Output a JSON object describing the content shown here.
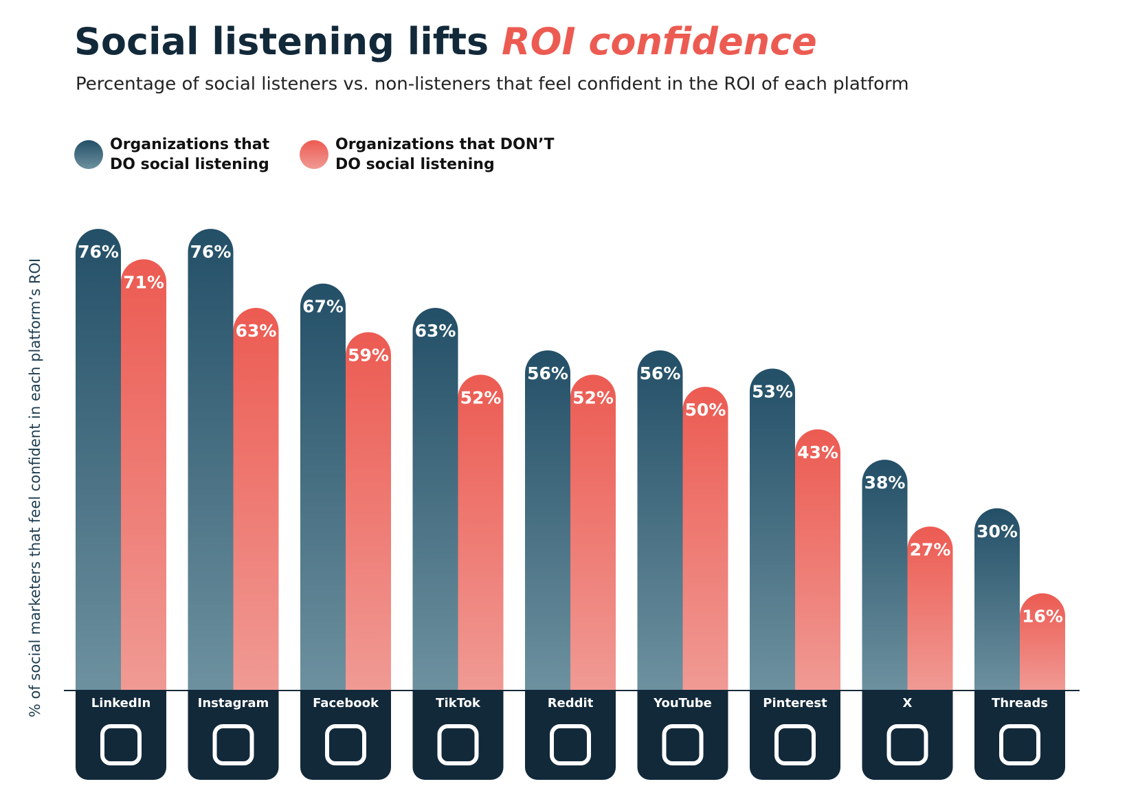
{
  "chart_data": {
    "type": "bar",
    "title": "Social listening lifts",
    "title_highlight": "ROI confidence",
    "subtitle": "Percentage of social listeners vs. non-listeners that feel confident in the ROI of each platform",
    "y_label": "% of social marketers that feel confident in each platform’s ROI",
    "categories": [
      "LinkedIn",
      "Instagram",
      "Facebook",
      "TikTok",
      "Reddit",
      "YouTube",
      "Pinterest",
      "X",
      "Threads"
    ],
    "series": [
      {
        "name": "Organizations that DO social listening",
        "color": "#234f67",
        "values": [
          76,
          76,
          67,
          63,
          56,
          56,
          53,
          38,
          30
        ],
        "value_labels": [
          "76%",
          "76%",
          "67%",
          "63%",
          "56%",
          "56%",
          "53%",
          "38%",
          "30%"
        ]
      },
      {
        "name": "Organizations that DON’T DO social listening",
        "color": "#ec5b52",
        "values": [
          71,
          63,
          59,
          52,
          52,
          50,
          43,
          27,
          16
        ],
        "value_labels": [
          "71%",
          "63%",
          "59%",
          "52%",
          "52%",
          "50%",
          "43%",
          "27%",
          "16%"
        ]
      }
    ]
  }
}
